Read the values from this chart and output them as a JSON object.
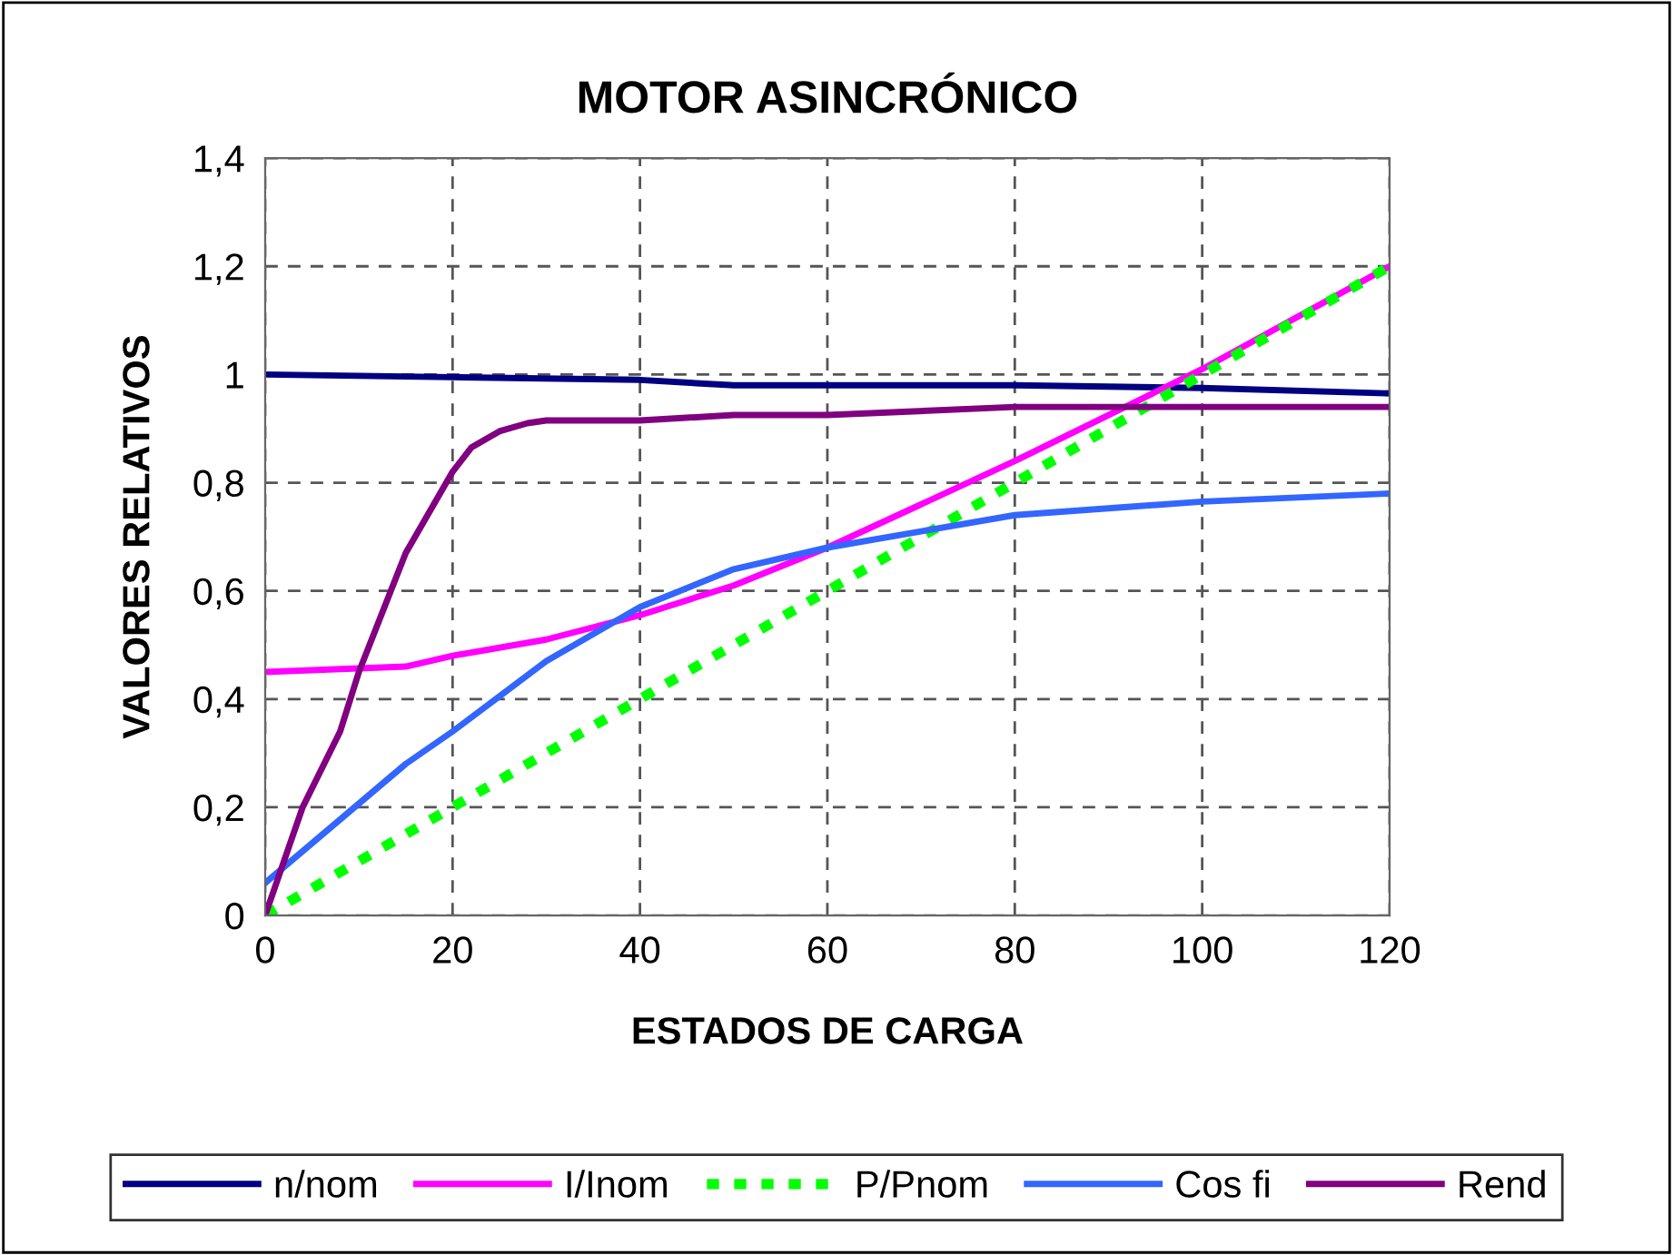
{
  "chart_data": {
    "type": "line",
    "title": "MOTOR ASINCRÓNICO",
    "xlabel": "ESTADOS DE CARGA",
    "ylabel": "VALORES RELATIVOS",
    "xlim": [
      0,
      120
    ],
    "xticks": [
      0,
      20,
      40,
      60,
      80,
      100,
      120
    ],
    "ylim": [
      0,
      1.4
    ],
    "yticks": [
      0,
      {
        "value": 0.2,
        "label": "0,2"
      },
      {
        "value": 0.4,
        "label": "0,4"
      },
      {
        "value": 0.6,
        "label": "0,6"
      },
      {
        "value": 0.8,
        "label": "0,8"
      },
      1,
      {
        "value": 1.2,
        "label": "1,2"
      },
      {
        "value": 1.4,
        "label": "1,4"
      }
    ],
    "grid": true,
    "legend": "bottom",
    "marker": "none",
    "series": [
      {
        "name": "n/nom",
        "color": "#000080",
        "line_style": "solid",
        "x": [
          0,
          20,
          40,
          50,
          80,
          100,
          120
        ],
        "values": [
          1.0,
          0.995,
          0.99,
          0.98,
          0.98,
          0.975,
          0.965
        ]
      },
      {
        "name": "I/Inom",
        "color": "#ff00ff",
        "line_style": "solid",
        "x": [
          0,
          15,
          20,
          30,
          40,
          50,
          60,
          80,
          100,
          120
        ],
        "values": [
          0.45,
          0.46,
          0.48,
          0.51,
          0.555,
          0.61,
          0.68,
          0.84,
          1.01,
          1.2
        ]
      },
      {
        "name": "P/Pnom",
        "color": "#00ff00",
        "line_style": "dotted",
        "x": [
          0,
          20,
          40,
          60,
          80,
          100,
          120
        ],
        "values": [
          0,
          0.2,
          0.4,
          0.6,
          0.8,
          1.0,
          1.2
        ]
      },
      {
        "name": "Cos fi",
        "color": "#3366ff",
        "line_style": "solid",
        "x": [
          0,
          15,
          20,
          30,
          40,
          50,
          60,
          70,
          80,
          100,
          120
        ],
        "values": [
          0.06,
          0.28,
          0.34,
          0.47,
          0.57,
          0.64,
          0.68,
          0.71,
          0.74,
          0.765,
          0.78
        ]
      },
      {
        "name": "Rend",
        "color": "#800080",
        "line_style": "solid",
        "x": [
          0,
          4,
          8,
          10,
          15,
          20,
          22,
          25,
          28,
          30,
          40,
          50,
          60,
          80,
          120
        ],
        "values": [
          0,
          0.2,
          0.34,
          0.45,
          0.67,
          0.82,
          0.865,
          0.895,
          0.91,
          0.915,
          0.915,
          0.925,
          0.925,
          0.94,
          0.94
        ]
      }
    ]
  }
}
